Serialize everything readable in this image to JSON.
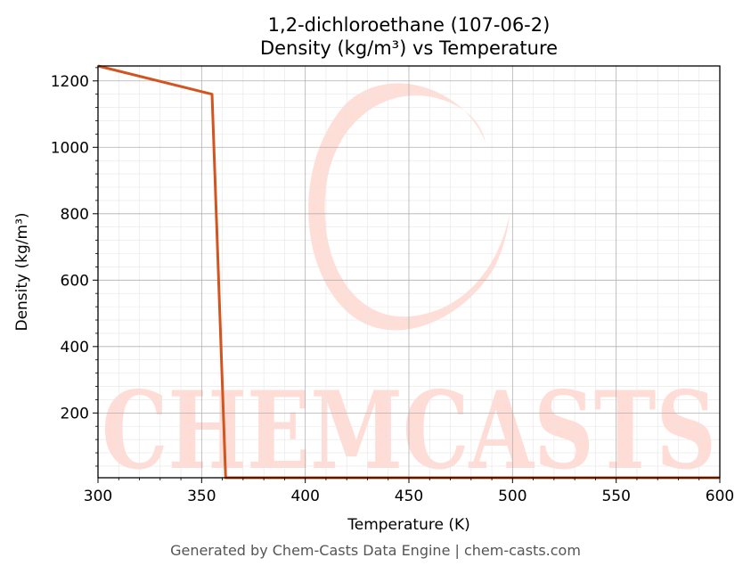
{
  "chart_data": {
    "type": "line",
    "title_line1": "1,2-dichloroethane (107-06-2)",
    "title_line2": "Density (kg/m³) vs Temperature",
    "xlabel": "Temperature (K)",
    "ylabel": "Density (kg/m³)",
    "xlim": [
      300,
      600
    ],
    "ylim": [
      5,
      1245
    ],
    "x_ticks": [
      "300",
      "350",
      "400",
      "450",
      "500",
      "550",
      "600"
    ],
    "y_ticks": [
      "200",
      "400",
      "600",
      "800",
      "1000",
      "1200"
    ],
    "grid": true,
    "series": [
      {
        "color": "#d4541f",
        "x": [
          300,
          355,
          361.6,
          380,
          450,
          500,
          550,
          600
        ],
        "y": [
          1245,
          1160,
          4,
          3.9,
          3.4,
          3.1,
          2.9,
          2.7
        ]
      }
    ]
  },
  "watermark": {
    "text": "CHEMCASTS",
    "color": "#ffd8d0"
  },
  "footer": "Generated by Chem-Casts Data Engine | chem-casts.com"
}
